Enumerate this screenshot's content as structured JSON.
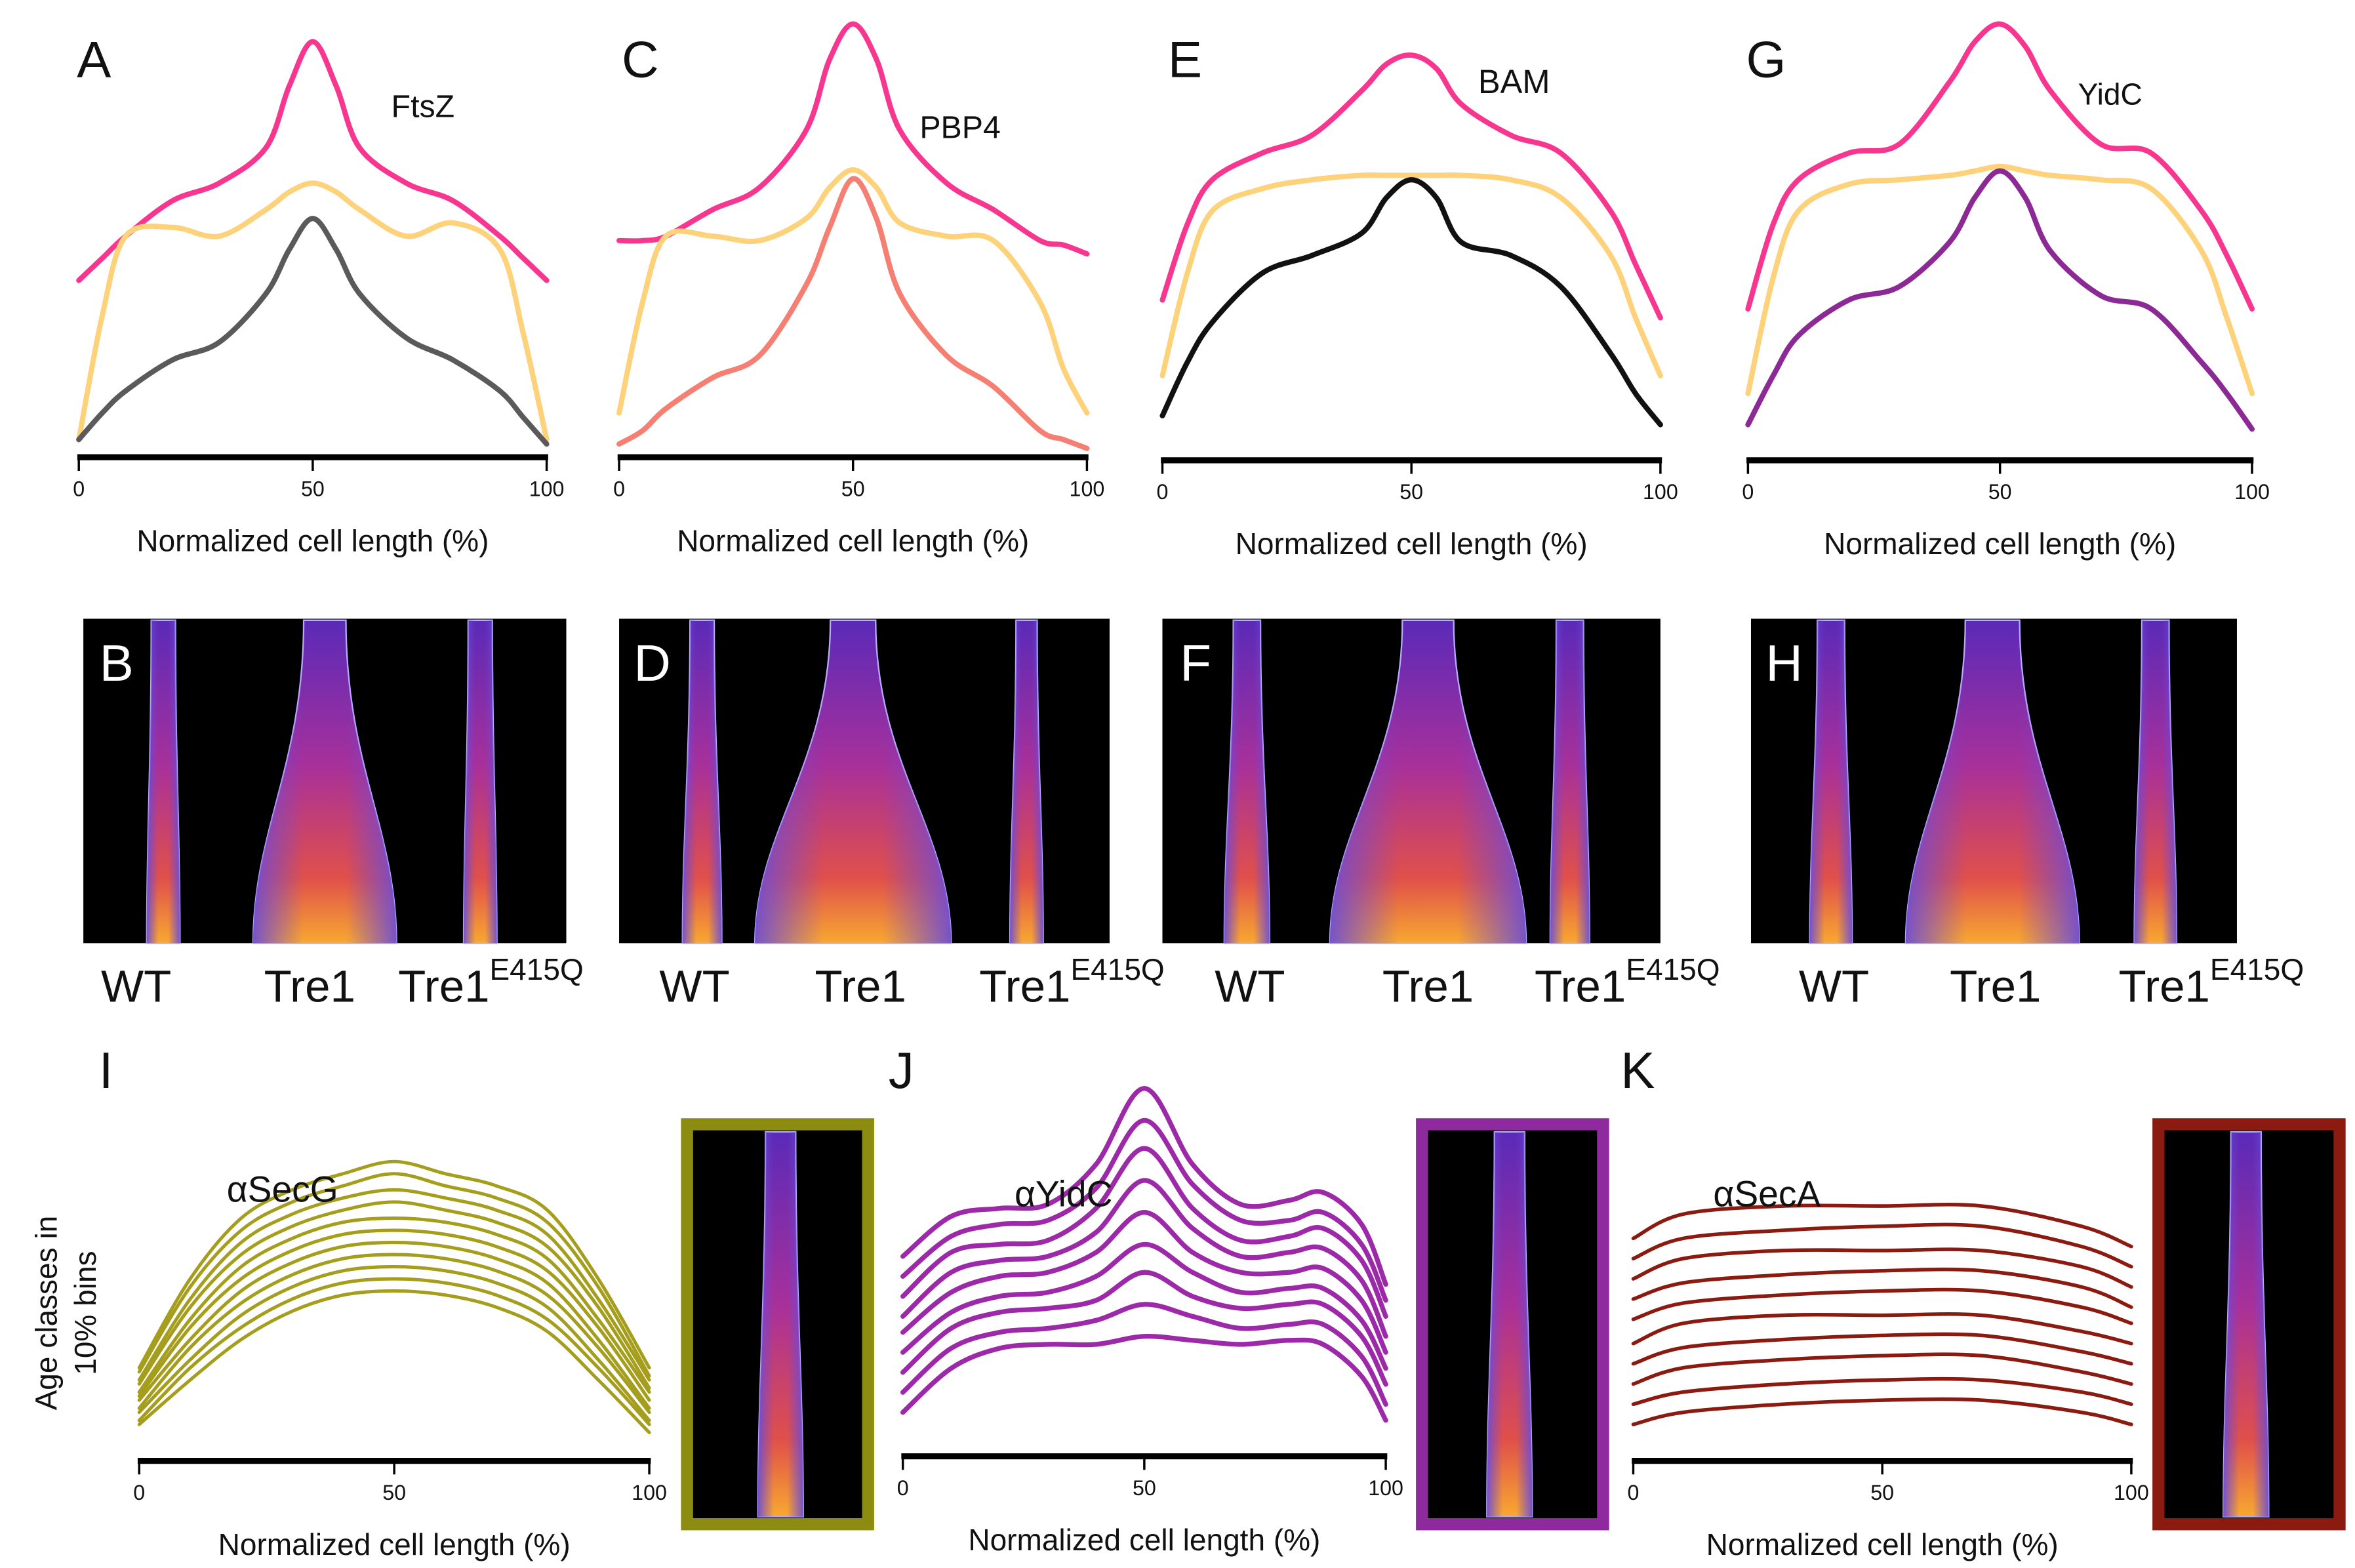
{
  "chart_data": [
    {
      "type": "line",
      "label": "A",
      "title": "FtsZ",
      "xlabel": "Normalized cell length (%)",
      "x": [
        0,
        5,
        10,
        20,
        30,
        40,
        45,
        50,
        55,
        60,
        70,
        80,
        90,
        95,
        100
      ],
      "xlim": [
        0,
        100
      ],
      "xticks": [
        0,
        50,
        100
      ],
      "ylim": [
        0,
        100
      ],
      "series": [
        {
          "color": "#f7378f",
          "values": [
            40,
            45,
            50,
            58,
            62,
            70,
            84,
            94,
            84,
            70,
            62,
            58,
            50,
            45,
            40
          ]
        },
        {
          "color": "#fdd27a",
          "values": [
            4,
            32,
            50,
            52,
            50,
            56,
            60,
            62,
            60,
            56,
            50,
            53,
            47,
            28,
            4
          ]
        },
        {
          "color": "#5a5a5a",
          "values": [
            4,
            10,
            15,
            22,
            26,
            37,
            47,
            54,
            47,
            37,
            27,
            22,
            15,
            9,
            3
          ]
        }
      ]
    },
    {
      "type": "line",
      "label": "C",
      "title": "PBP4",
      "xlabel": "Normalized cell length (%)",
      "x": [
        0,
        5,
        10,
        20,
        30,
        40,
        45,
        50,
        55,
        60,
        70,
        80,
        90,
        95,
        100
      ],
      "xlim": [
        0,
        100
      ],
      "xticks": [
        0,
        50,
        100
      ],
      "ylim": [
        0,
        100
      ],
      "series": [
        {
          "color": "#f7378f",
          "values": [
            49,
            49,
            50,
            56,
            61,
            74,
            90,
            98,
            90,
            74,
            62,
            56,
            49,
            48,
            46
          ]
        },
        {
          "color": "#fdd27a",
          "values": [
            10,
            35,
            50,
            50,
            49,
            54,
            61,
            65,
            61,
            53,
            50,
            49,
            35,
            20,
            10
          ]
        },
        {
          "color": "#f47f72",
          "values": [
            3,
            6,
            11,
            18,
            23,
            39,
            52,
            63,
            54,
            37,
            23,
            16,
            6,
            4,
            2
          ]
        }
      ]
    },
    {
      "type": "line",
      "label": "E",
      "title": "BAM",
      "xlabel": "Normalized cell length (%)",
      "x": [
        0,
        5,
        10,
        20,
        30,
        40,
        45,
        50,
        55,
        60,
        70,
        80,
        90,
        95,
        100
      ],
      "xlim": [
        0,
        100
      ],
      "xticks": [
        0,
        50,
        100
      ],
      "ylim": [
        0,
        100
      ],
      "series": [
        {
          "color": "#f7378f",
          "values": [
            36,
            53,
            63,
            69,
            73,
            83,
            89,
            91,
            88,
            80,
            73,
            69,
            56,
            44,
            32
          ]
        },
        {
          "color": "#fdd27a",
          "values": [
            19,
            42,
            56,
            61,
            63,
            64,
            64,
            64,
            64,
            64,
            63,
            59,
            46,
            32,
            19
          ]
        },
        {
          "color": "#111111",
          "values": [
            10,
            22,
            31,
            42,
            46,
            51,
            59,
            63,
            59,
            49,
            46,
            39,
            24,
            15,
            8
          ]
        }
      ]
    },
    {
      "type": "line",
      "label": "G",
      "title": "YidC",
      "xlabel": "Normalized cell length (%)",
      "x": [
        0,
        5,
        10,
        20,
        30,
        40,
        45,
        50,
        55,
        60,
        70,
        80,
        90,
        95,
        100
      ],
      "xlim": [
        0,
        100
      ],
      "xticks": [
        0,
        50,
        100
      ],
      "ylim": [
        0,
        100
      ],
      "series": [
        {
          "color": "#f7378f",
          "values": [
            34,
            53,
            63,
            69,
            71,
            85,
            94,
            98,
            93,
            83,
            71,
            69,
            56,
            46,
            34
          ]
        },
        {
          "color": "#fdd27a",
          "values": [
            15,
            41,
            56,
            62,
            63,
            64,
            65,
            66,
            65,
            64,
            63,
            61,
            47,
            32,
            15
          ]
        },
        {
          "color": "#8b2a95",
          "values": [
            8,
            19,
            28,
            36,
            39,
            49,
            59,
            65,
            59,
            47,
            37,
            34,
            22,
            15,
            7
          ]
        }
      ]
    },
    {
      "type": "line",
      "label": "I",
      "title": "αSecG",
      "xlabel": "Normalized cell length (%)",
      "ylabel": [
        "Age classes in",
        "10% bins"
      ],
      "x": [
        0,
        10,
        20,
        30,
        40,
        50,
        60,
        70,
        80,
        90,
        100
      ],
      "xlim": [
        0,
        100
      ],
      "xticks": [
        0,
        50,
        100
      ],
      "ylim": [
        0,
        100
      ],
      "series": [
        {
          "color": "#a59d1c",
          "values": [
            9,
            20,
            30,
            37,
            41,
            42,
            41,
            38,
            32,
            20,
            7
          ]
        },
        {
          "color": "#a59d1c",
          "values": [
            10,
            23,
            33,
            40,
            44,
            45,
            44,
            41,
            35,
            23,
            9
          ]
        },
        {
          "color": "#a59d1c",
          "values": [
            12,
            25,
            36,
            43,
            47,
            48,
            47,
            44,
            38,
            25,
            10
          ]
        },
        {
          "color": "#a59d1c",
          "values": [
            13,
            28,
            39,
            46,
            50,
            51,
            50,
            47,
            41,
            28,
            12
          ]
        },
        {
          "color": "#a59d1c",
          "values": [
            15,
            30,
            42,
            49,
            53,
            54,
            53,
            50,
            44,
            30,
            13
          ]
        },
        {
          "color": "#a59d1c",
          "values": [
            16,
            33,
            45,
            52,
            56,
            57,
            56,
            53,
            47,
            33,
            15
          ]
        },
        {
          "color": "#a59d1c",
          "values": [
            17,
            35,
            48,
            55,
            59,
            60,
            59,
            56,
            50,
            35,
            17
          ]
        },
        {
          "color": "#a59d1c",
          "values": [
            19,
            38,
            51,
            58,
            62,
            64,
            62,
            59,
            53,
            38,
            18
          ]
        },
        {
          "color": "#a59d1c",
          "values": [
            20,
            40,
            54,
            61,
            65,
            67,
            65,
            62,
            56,
            40,
            20
          ]
        },
        {
          "color": "#a59d1c",
          "values": [
            22,
            43,
            57,
            64,
            68,
            71,
            68,
            65,
            59,
            43,
            21
          ]
        },
        {
          "color": "#a59d1c",
          "values": [
            23,
            45,
            60,
            67,
            71,
            74,
            71,
            68,
            62,
            45,
            23
          ]
        }
      ]
    },
    {
      "type": "line",
      "label": "J",
      "title": "αYidC",
      "xlabel": "Normalized cell length (%)",
      "x": [
        0,
        10,
        20,
        30,
        40,
        50,
        60,
        70,
        80,
        87,
        95,
        100
      ],
      "xlim": [
        0,
        100
      ],
      "xticks": [
        0,
        50,
        100
      ],
      "ylim": [
        0,
        100
      ],
      "series": [
        {
          "color": "#9c2aa8",
          "values": [
            11,
            22,
            27,
            28,
            28,
            30,
            29,
            28,
            29,
            28,
            20,
            9
          ]
        },
        {
          "color": "#9c2aa8",
          "values": [
            16,
            27,
            31,
            32,
            34,
            38,
            35,
            32,
            33,
            33,
            25,
            13
          ]
        },
        {
          "color": "#9c2aa8",
          "values": [
            21,
            32,
            36,
            37,
            39,
            46,
            40,
            37,
            38,
            38,
            30,
            18
          ]
        },
        {
          "color": "#9c2aa8",
          "values": [
            26,
            36,
            40,
            41,
            45,
            53,
            46,
            41,
            42,
            42,
            34,
            22
          ]
        },
        {
          "color": "#9c2aa8",
          "values": [
            31,
            41,
            45,
            46,
            51,
            61,
            51,
            46,
            46,
            47,
            39,
            26
          ]
        },
        {
          "color": "#9c2aa8",
          "values": [
            35,
            46,
            49,
            50,
            56,
            69,
            57,
            50,
            51,
            52,
            44,
            30
          ]
        },
        {
          "color": "#9c2aa8",
          "values": [
            40,
            51,
            53,
            54,
            62,
            77,
            62,
            54,
            55,
            57,
            49,
            35
          ]
        },
        {
          "color": "#9c2aa8",
          "values": [
            45,
            55,
            58,
            59,
            67,
            84,
            68,
            59,
            59,
            61,
            53,
            39
          ]
        },
        {
          "color": "#9c2aa8",
          "values": [
            50,
            60,
            62,
            63,
            73,
            92,
            73,
            63,
            64,
            66,
            58,
            43
          ]
        }
      ]
    },
    {
      "type": "line",
      "label": "K",
      "title": "αSecA",
      "xlabel": "Normalized cell length (%)",
      "x": [
        0,
        10,
        30,
        50,
        70,
        90,
        100
      ],
      "xlim": [
        0,
        100
      ],
      "xticks": [
        0,
        50,
        100
      ],
      "ylim": [
        0,
        100
      ],
      "series": [
        {
          "color": "#8b1a10",
          "values": [
            9,
            12,
            14,
            15,
            15,
            12,
            9
          ]
        },
        {
          "color": "#8b1a10",
          "values": [
            14,
            17,
            19,
            20,
            20,
            17,
            14
          ]
        },
        {
          "color": "#8b1a10",
          "values": [
            19,
            23,
            25,
            26,
            26,
            22,
            19
          ]
        },
        {
          "color": "#8b1a10",
          "values": [
            24,
            28,
            30,
            31,
            31,
            27,
            24
          ]
        },
        {
          "color": "#8b1a10",
          "values": [
            29,
            34,
            36,
            36,
            36,
            32,
            29
          ]
        },
        {
          "color": "#8b1a10",
          "values": [
            35,
            39,
            41,
            42,
            42,
            38,
            34
          ]
        },
        {
          "color": "#8b1a10",
          "values": [
            40,
            44,
            46,
            47,
            47,
            43,
            38
          ]
        },
        {
          "color": "#8b1a10",
          "values": [
            45,
            50,
            52,
            52,
            52,
            48,
            43
          ]
        },
        {
          "color": "#8b1a10",
          "values": [
            50,
            55,
            57,
            58,
            58,
            53,
            48
          ]
        },
        {
          "color": "#8b1a10",
          "values": [
            55,
            61,
            63,
            63,
            63,
            58,
            53
          ]
        }
      ]
    }
  ],
  "heatmaps": [
    {
      "label": "B",
      "groups": [
        {
          "text": "WT"
        },
        {
          "text": "Tre1"
        },
        {
          "text": "Tre1",
          "sup": "E415Q"
        }
      ]
    },
    {
      "label": "D",
      "groups": [
        {
          "text": "WT"
        },
        {
          "text": "Tre1"
        },
        {
          "text": "Tre1",
          "sup": "E415Q"
        }
      ]
    },
    {
      "label": "F",
      "groups": [
        {
          "text": "WT"
        },
        {
          "text": "Tre1"
        },
        {
          "text": "Tre1",
          "sup": "E415Q"
        }
      ]
    },
    {
      "label": "H",
      "groups": [
        {
          "text": "WT"
        },
        {
          "text": "Tre1"
        },
        {
          "text": "Tre1",
          "sup": "E415Q"
        }
      ]
    }
  ]
}
